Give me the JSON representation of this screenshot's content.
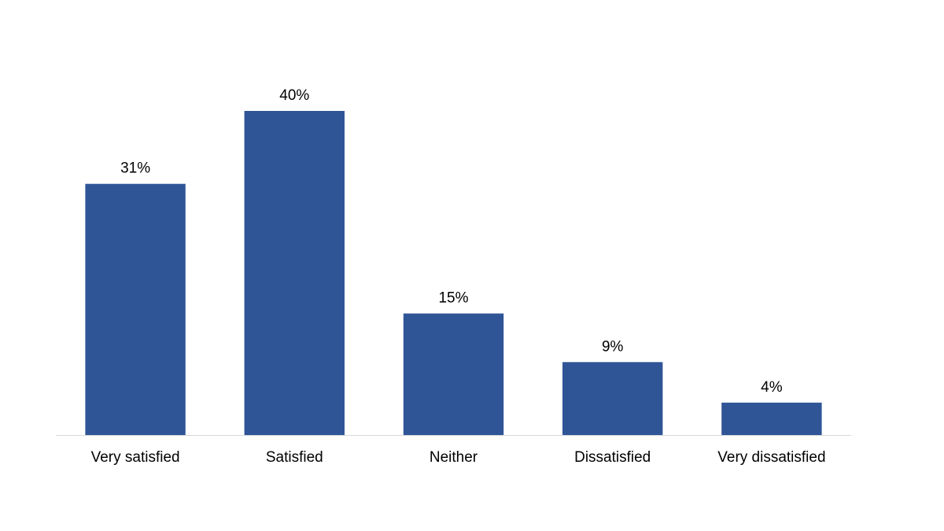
{
  "chart_data": {
    "type": "bar",
    "categories": [
      "Very satisfied",
      "Satisfied",
      "Neither",
      "Dissatisfied",
      "Very dissatisfied"
    ],
    "values": [
      31,
      40,
      15,
      9,
      4
    ],
    "value_labels": [
      "31%",
      "40%",
      "15%",
      "9%",
      "4%"
    ],
    "color": "#2f5597"
  }
}
